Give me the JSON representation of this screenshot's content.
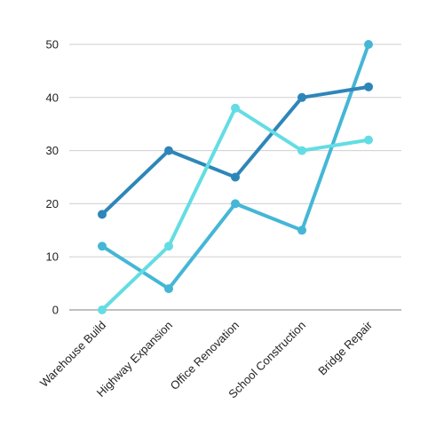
{
  "chart_data": {
    "type": "line",
    "title": "",
    "xlabel": "",
    "ylabel": "",
    "categories": [
      "Warehouse Build",
      "Highway Expansion",
      "Office Renovation",
      "School Construction",
      "Bridge Repair"
    ],
    "ylim": [
      0,
      50
    ],
    "yticks": [
      0,
      10,
      20,
      30,
      40,
      50
    ],
    "grid": true,
    "legend": "none",
    "series": [
      {
        "color": "#2e86b8",
        "values": [
          18,
          30,
          25,
          40,
          42
        ]
      },
      {
        "color": "#45b6d6",
        "values": [
          12,
          4,
          20,
          15,
          50
        ]
      },
      {
        "color": "#63dde3",
        "values": [
          0,
          12,
          38,
          30,
          32
        ]
      }
    ]
  }
}
